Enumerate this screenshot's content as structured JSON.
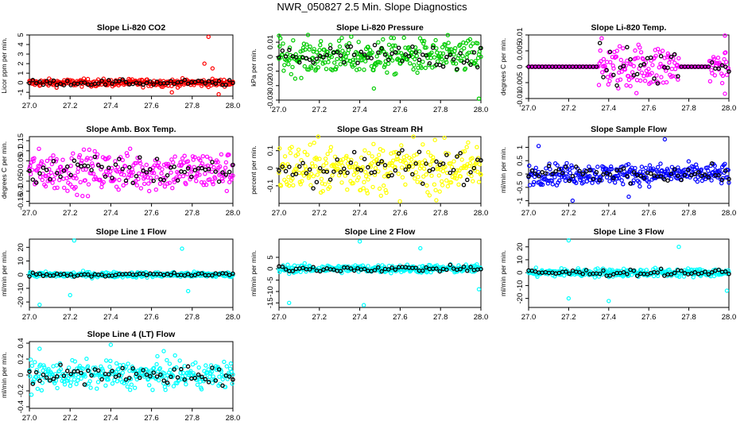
{
  "figure": {
    "title": "NWR_050827  2.5 Min. Slope Diagnostics"
  },
  "colors": {
    "red": "#ff0000",
    "green": "#00cc00",
    "magenta": "#ff00ff",
    "yellow": "#ffff00",
    "blue": "#0000ff",
    "cyan": "#00ffff",
    "reference": "#000000"
  },
  "chart_data": [
    {
      "type": "scatter",
      "title": "Slope Li-820 CO2",
      "ylabel": "Licor ppm per min.",
      "color": "red",
      "xlim": [
        27.0,
        28.0
      ],
      "ylim": [
        -1.4,
        5.0
      ],
      "xticks": [
        "27.0",
        "27.2",
        "27.4",
        "27.6",
        "27.8",
        "28.0"
      ],
      "yticks": [
        -1,
        0,
        1,
        2,
        3,
        4,
        5
      ],
      "series_spread": 0.35,
      "outliers": [
        [
          27.88,
          4.8
        ],
        [
          27.86,
          2.0
        ],
        [
          27.9,
          1.5
        ],
        [
          27.93,
          -1.2
        ],
        [
          27.7,
          -1.0
        ]
      ],
      "grid": false
    },
    {
      "type": "scatter",
      "title": "Slope Li-820 Pressure",
      "ylabel": "kPa per min.",
      "color": "green",
      "xlim": [
        27.0,
        28.0
      ],
      "ylim": [
        -0.03,
        0.015
      ],
      "xticks": [
        "27.0",
        "27.2",
        "27.4",
        "27.6",
        "27.8",
        "28.0"
      ],
      "yticks": [
        -0.03,
        -0.02,
        -0.01,
        0,
        0.01
      ],
      "series_spread": 0.011,
      "outliers": [
        [
          27.0,
          0.0145
        ],
        [
          27.99,
          -0.029
        ],
        [
          27.47,
          -0.022
        ]
      ],
      "grid": false
    },
    {
      "type": "scatter",
      "title": "Slope Li-820 Temp.",
      "ylabel": "degrees C per min.",
      "color": "magenta",
      "xlim": [
        27.0,
        28.0
      ],
      "ylim": [
        -0.01,
        0.01
      ],
      "xticks": [
        "27.0",
        "27.2",
        "27.4",
        "27.6",
        "27.8",
        "28.0"
      ],
      "yticks": [
        -0.01,
        -0.005,
        0,
        0.005,
        0.01
      ],
      "series_spread": 0.0,
      "active_ranges": [
        [
          27.35,
          27.75,
          0.0065
        ],
        [
          27.9,
          28.0,
          0.004
        ]
      ],
      "outliers": [
        [
          27.98,
          0.0098
        ],
        [
          27.98,
          -0.0085
        ]
      ],
      "grid": false
    },
    {
      "type": "scatter",
      "title": "Slope Amb. Box Temp.",
      "ylabel": "degrees C per min.",
      "color": "magenta",
      "xlim": [
        27.0,
        28.0
      ],
      "ylim": [
        -0.16,
        0.17
      ],
      "xticks": [
        "27.0",
        "27.2",
        "27.4",
        "27.6",
        "27.8",
        "28.0"
      ],
      "yticks": [
        -0.15,
        -0.1,
        -0.05,
        0,
        0.05,
        0.1,
        0.15
      ],
      "series_spread": 0.09,
      "outliers": [],
      "grid": false
    },
    {
      "type": "scatter",
      "title": "Slope Gas Stream RH",
      "ylabel": "percent per min.",
      "color": "yellow",
      "xlim": [
        27.0,
        28.0
      ],
      "ylim": [
        -0.2,
        0.18
      ],
      "xticks": [
        "27.0",
        "27.2",
        "27.4",
        "27.6",
        "27.8",
        "28.0"
      ],
      "yticks": [
        -0.1,
        0,
        0.1
      ],
      "series_spread": 0.13,
      "outliers": [],
      "grid": false
    },
    {
      "type": "scatter",
      "title": "Slope Sample Flow",
      "ylabel": "ml/min per min.",
      "color": "blue",
      "xlim": [
        27.0,
        28.0
      ],
      "ylim": [
        -1.1,
        1.4
      ],
      "xticks": [
        "27.0",
        "27.2",
        "27.4",
        "27.6",
        "27.8",
        "28.0"
      ],
      "yticks": [
        -1,
        -0.5,
        0,
        0.5,
        1
      ],
      "series_spread": 0.35,
      "outliers": [
        [
          27.05,
          1.05
        ],
        [
          27.68,
          1.3
        ],
        [
          27.22,
          -1.0
        ],
        [
          27.5,
          -0.85
        ]
      ],
      "grid": false
    },
    {
      "type": "scatter",
      "title": "Slope Line 1 Flow",
      "ylabel": "ml/min per min.",
      "color": "cyan",
      "xlim": [
        27.0,
        28.0
      ],
      "ylim": [
        -24,
        26
      ],
      "xticks": [
        "27.0",
        "27.2",
        "27.4",
        "27.6",
        "27.8",
        "28.0"
      ],
      "yticks": [
        -20,
        -10,
        0,
        10,
        20
      ],
      "series_spread": 1.8,
      "outliers": [
        [
          27.22,
          25
        ],
        [
          27.75,
          19
        ],
        [
          27.2,
          -15
        ],
        [
          27.05,
          -22
        ],
        [
          27.78,
          -12
        ]
      ],
      "grid": false
    },
    {
      "type": "scatter",
      "title": "Slope Line 2 Flow",
      "ylabel": "ml/min per min.",
      "color": "cyan",
      "xlim": [
        27.0,
        28.0
      ],
      "ylim": [
        -17,
        13
      ],
      "xticks": [
        "27.0",
        "27.2",
        "27.4",
        "27.6",
        "27.8",
        "28.0"
      ],
      "yticks": [
        -15,
        -10,
        -5,
        0,
        5
      ],
      "series_spread": 1.6,
      "outliers": [
        [
          27.4,
          12
        ],
        [
          27.42,
          -16
        ],
        [
          27.05,
          -15
        ],
        [
          27.7,
          9
        ],
        [
          27.99,
          -9
        ]
      ],
      "grid": false
    },
    {
      "type": "scatter",
      "title": "Slope Line 3 Flow",
      "ylabel": "ml/min per min.",
      "color": "cyan",
      "xlim": [
        27.0,
        28.0
      ],
      "ylim": [
        -27,
        26
      ],
      "xticks": [
        "27.0",
        "27.2",
        "27.4",
        "27.6",
        "27.8",
        "28.0"
      ],
      "yticks": [
        -20,
        -10,
        0,
        10,
        20
      ],
      "series_spread": 3.0,
      "outliers": [
        [
          27.2,
          25
        ],
        [
          27.4,
          -22
        ],
        [
          27.2,
          -20
        ],
        [
          27.75,
          20
        ],
        [
          27.99,
          -14
        ]
      ],
      "grid": false
    },
    {
      "type": "scatter",
      "title": "Slope Line 4 (LT) Flow",
      "ylabel": "ml/min per min.",
      "color": "cyan",
      "xlim": [
        27.0,
        28.0
      ],
      "ylim": [
        -0.42,
        0.42
      ],
      "xticks": [
        "27.0",
        "27.2",
        "27.4",
        "27.6",
        "27.8",
        "28.0"
      ],
      "yticks": [
        -0.4,
        -0.2,
        0,
        0.2,
        0.4
      ],
      "series_spread": 0.15,
      "outliers": [
        [
          27.05,
          0.33
        ],
        [
          27.4,
          0.38
        ],
        [
          27.66,
          0.3
        ]
      ],
      "grid": false
    }
  ]
}
